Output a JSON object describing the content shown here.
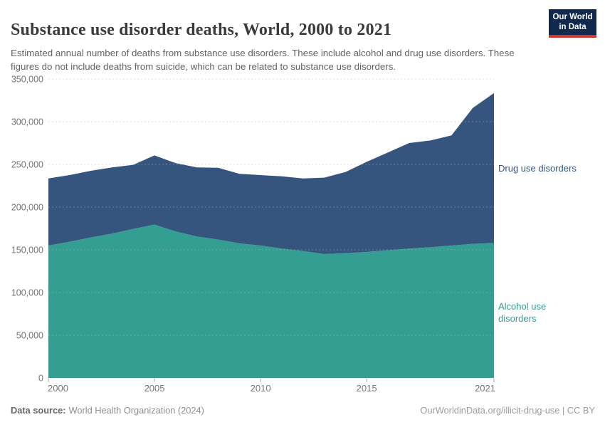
{
  "header": {
    "title": "Substance use disorder deaths, World, 2000 to 2021",
    "subtitle": "Estimated annual number of deaths from substance use disorders. These include alcohol and drug use disorders. These figures do not include deaths from suicide, which can be related to substance use disorders.",
    "logo": {
      "line1": "Our World",
      "line2": "in Data",
      "bg_color": "#12294e",
      "stripe_color": "#d0352f"
    }
  },
  "footer": {
    "source_label": "Data source:",
    "source_value": "World Health Organization (2024)",
    "credit": "OurWorldinData.org/illicit-drug-use | CC BY"
  },
  "chart_data": {
    "type": "area",
    "stacked": true,
    "title": "Substance use disorder deaths, World, 2000 to 2021",
    "x": [
      2000,
      2001,
      2002,
      2003,
      2004,
      2005,
      2006,
      2007,
      2008,
      2009,
      2010,
      2011,
      2012,
      2013,
      2014,
      2015,
      2016,
      2017,
      2018,
      2019,
      2020,
      2021
    ],
    "series": [
      {
        "name": "Alcohol use disorders",
        "color": "#349e92",
        "values": [
          155000,
          159500,
          164500,
          169000,
          174500,
          179500,
          171500,
          165500,
          162000,
          157500,
          155000,
          151500,
          148500,
          145000,
          146000,
          147500,
          149500,
          151500,
          153000,
          155000,
          157000,
          158000
        ]
      },
      {
        "name": "Drug use disorders",
        "color": "#35557e",
        "values": [
          78500,
          78000,
          78000,
          77500,
          75000,
          81000,
          80000,
          81000,
          84000,
          81500,
          82500,
          84500,
          85000,
          89500,
          95000,
          105500,
          114500,
          123500,
          125000,
          129000,
          159000,
          175500
        ]
      }
    ],
    "xlabel": "",
    "ylabel": "",
    "ylim": [
      0,
      350000
    ],
    "y_ticks": [
      0,
      50000,
      100000,
      150000,
      200000,
      250000,
      300000,
      350000
    ],
    "x_ticks": [
      2000,
      2005,
      2010,
      2015,
      2021
    ],
    "grid": "horizontal-dashed",
    "legend_position": "right",
    "tick_color": "#757575",
    "gridline_color": "#dddddd"
  }
}
